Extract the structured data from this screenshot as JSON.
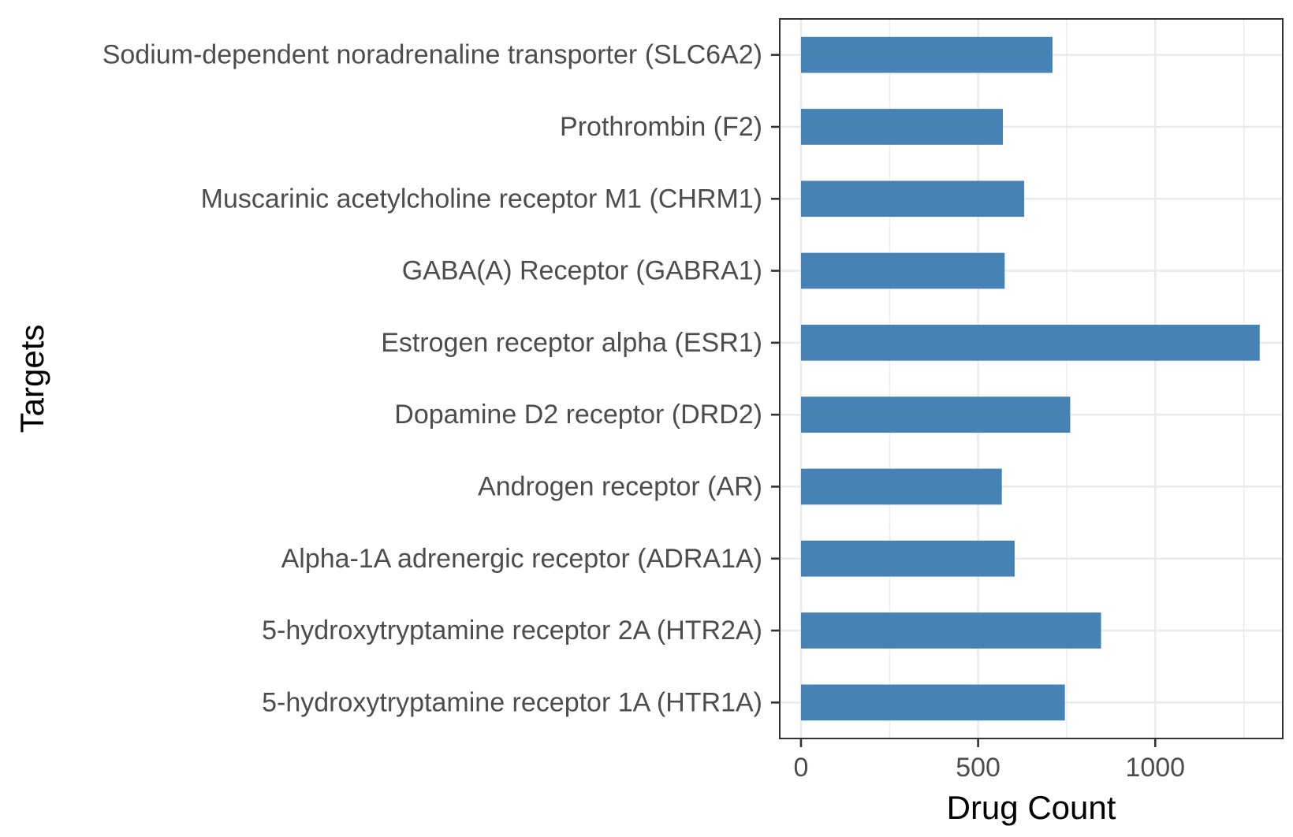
{
  "chart_data": {
    "type": "bar",
    "orientation": "horizontal",
    "categories": [
      "Sodium-dependent noradrenaline transporter (SLC6A2)",
      "Prothrombin (F2)",
      "Muscarinic acetylcholine receptor M1 (CHRM1)",
      "GABA(A) Receptor (GABRA1)",
      "Estrogen receptor alpha (ESR1)",
      "Dopamine D2 receptor (DRD2)",
      "Androgen receptor (AR)",
      "Alpha-1A adrenergic receptor (ADRA1A)",
      "5-hydroxytryptamine receptor 2A (HTR2A)",
      "5-hydroxytryptamine receptor 1A (HTR1A)"
    ],
    "values": [
      710,
      570,
      630,
      575,
      1295,
      760,
      567,
      603,
      847,
      745
    ],
    "xlabel": "Drug Count",
    "ylabel": "Targets",
    "xlim": [
      -60,
      1360
    ],
    "x_ticks": [
      0,
      500,
      1000
    ],
    "x_tick_labels": [
      "0",
      "500",
      "1000"
    ],
    "x_minor_ticks": [
      250,
      750,
      1250
    ],
    "grid": true,
    "bar_color": "#4682b4",
    "theme": "bw"
  }
}
